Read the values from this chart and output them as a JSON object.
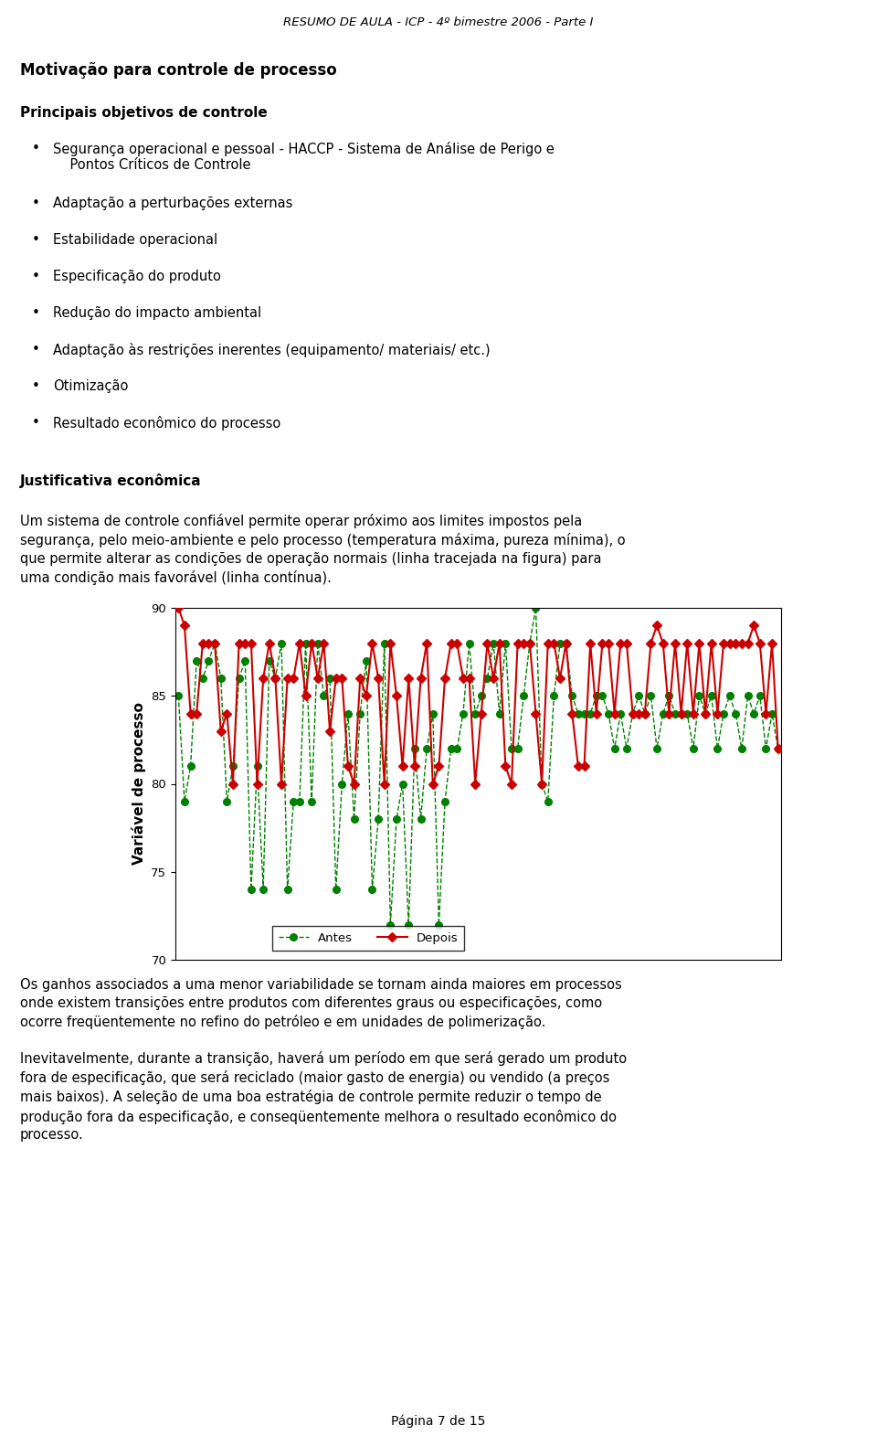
{
  "page_title": "RESUMO DE AULA - ICP - 4º bimestre 2006 - Parte I",
  "page_number": "Página 7 de 15",
  "section1_title": "Motivação para controle de processo",
  "section1_subtitle": "Principais objetivos de controle",
  "bullet_points": [
    "Segurança operacional e pessoal - HACCP - Sistema de Análise de Perigo e\n    Pontos Críticos de Controle",
    "Adaptação a perturbações externas",
    "Estabilidade operacional",
    "Especificação do produto",
    "Redução do impacto ambiental",
    "Adaptação às restrições inerentes (equipamento/ materiais/ etc.)",
    "Otimização",
    "Resultado econômico do processo"
  ],
  "section2_title": "Justificativa econômica",
  "section2_para": "Um sistema de controle confiável permite operar próximo aos limites impostos pela\nsegurança, pelo meio-ambiente e pelo processo (temperatura máxima, pureza mínima), o\nque permite alterar as condições de operação normais (linha tracejada na figura) para\numa condição mais favorável (linha contínua).",
  "section3_para1": "Os ganhos associados a uma menor variabilidade se tornam ainda maiores em processos\nonde existem transições entre produtos com diferentes graus ou especificações, como\nocorre freqüentemente no refino do petróleo e em unidades de polimerização.",
  "section3_para2": "Inevitavelmente, durante a transição, haverá um período em que será gerado um produto\nfora de especificação, que será reciclado (maior gasto de energia) ou vendido (a preços\nmais baixos). A seleção de uma boa estratégia de controle permite reduzir o tempo de\nprodução fora da especificação, e conseqüentemente melhora o resultado econômico do\nprocesso.",
  "chart_ylabel": "Variável de processo",
  "chart_ylim": [
    70,
    90
  ],
  "chart_yticks": [
    70,
    75,
    80,
    85,
    90
  ],
  "legend_antes": "Antes",
  "legend_depois": "Depois",
  "antes_color": "#008000",
  "depois_color": "#cc0000",
  "antes_data": [
    85,
    79,
    81,
    87,
    86,
    87,
    88,
    86,
    79,
    81,
    86,
    87,
    74,
    81,
    74,
    87,
    86,
    88,
    74,
    79,
    79,
    88,
    79,
    88,
    85,
    86,
    74,
    80,
    84,
    78,
    84,
    87,
    74,
    78,
    88,
    72,
    78,
    80,
    72,
    82,
    78,
    82,
    84,
    72,
    79,
    82,
    82,
    84,
    88,
    84,
    85,
    86,
    88,
    84,
    88,
    82,
    82,
    85,
    88,
    90,
    80,
    79,
    85,
    88,
    88,
    85,
    84,
    84,
    84,
    85,
    85,
    84,
    82,
    84,
    82,
    84,
    85,
    84,
    85,
    82,
    84,
    85,
    84,
    84,
    84,
    82,
    85,
    84,
    85,
    82,
    84,
    85,
    84,
    82,
    85,
    84,
    85,
    82,
    84,
    82
  ],
  "depois_data": [
    90,
    89,
    84,
    84,
    88,
    88,
    88,
    83,
    84,
    80,
    88,
    88,
    88,
    80,
    86,
    88,
    86,
    80,
    86,
    86,
    88,
    85,
    88,
    86,
    88,
    83,
    86,
    86,
    81,
    80,
    86,
    85,
    88,
    86,
    80,
    88,
    85,
    81,
    86,
    81,
    86,
    88,
    80,
    81,
    86,
    88,
    88,
    86,
    86,
    80,
    84,
    88,
    86,
    88,
    81,
    80,
    88,
    88,
    88,
    84,
    80,
    88,
    88,
    86,
    88,
    84,
    81,
    81,
    88,
    84,
    88,
    88,
    84,
    88,
    88,
    84,
    84,
    84,
    88,
    89,
    88,
    84,
    88,
    84,
    88,
    84,
    88,
    84,
    88,
    84,
    88,
    88,
    88,
    88,
    88,
    89,
    88,
    84,
    88,
    82
  ]
}
